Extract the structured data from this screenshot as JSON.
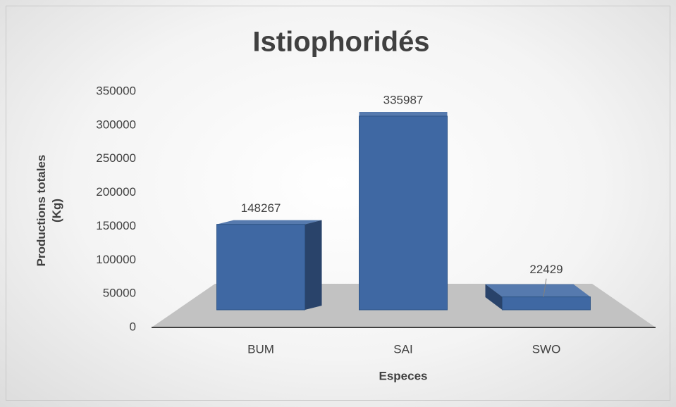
{
  "chart_data": {
    "type": "bar",
    "title": "Istiophoridés",
    "x_label": "Especes",
    "y_label": "Productions totales (Kg)",
    "categories": [
      "BUM",
      "SAI",
      "SWO"
    ],
    "values": [
      148267,
      335987,
      22429
    ],
    "color": "#3f68a3",
    "ylim": [
      0,
      350000
    ],
    "yticks": [
      0,
      50000,
      100000,
      150000,
      200000,
      250000,
      300000,
      350000
    ]
  }
}
